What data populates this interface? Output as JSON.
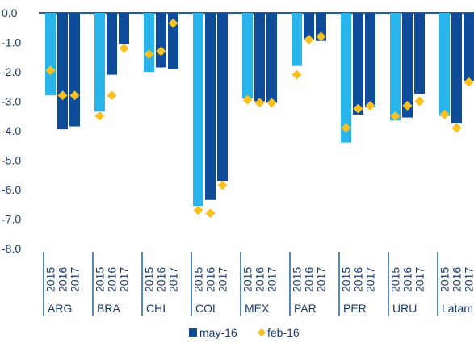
{
  "chart_data": {
    "type": "bar",
    "ylim": [
      -8,
      0
    ],
    "y_ticks": [
      "0.0",
      "-1.0",
      "-2.0",
      "-3.0",
      "-4.0",
      "-5.0",
      "-6.0",
      "-7.0",
      "-8.0"
    ],
    "years": [
      "2015",
      "2016",
      "2017"
    ],
    "groups": [
      "ARG",
      "BRA",
      "CHI",
      "COL",
      "MEX",
      "PAR",
      "PER",
      "URU",
      "Latam"
    ],
    "series": [
      {
        "name": "may-16",
        "mark": "bar",
        "values": [
          [
            -2.8,
            -3.95,
            -3.85
          ],
          [
            -3.35,
            -2.1,
            -1.05
          ],
          [
            -2.0,
            -1.85,
            -1.9
          ],
          [
            -6.55,
            -6.35,
            -5.7
          ],
          [
            -2.9,
            -3.0,
            -3.05
          ],
          [
            -1.8,
            -0.9,
            -0.95
          ],
          [
            -4.4,
            -3.45,
            -3.2
          ],
          [
            -3.65,
            -3.55,
            -2.75
          ],
          [
            -3.5,
            -3.75,
            -2.3
          ]
        ]
      },
      {
        "name": "feb-16",
        "mark": "diamond",
        "values": [
          [
            -1.95,
            -2.8,
            -2.8
          ],
          [
            -3.5,
            -2.8,
            -1.2
          ],
          [
            -1.4,
            -1.3,
            -0.35
          ],
          [
            -6.7,
            -6.8,
            -5.85
          ],
          [
            -2.95,
            -3.05,
            -3.05
          ],
          [
            -2.1,
            -0.9,
            -0.8
          ],
          [
            -3.9,
            -3.25,
            -3.15
          ],
          [
            -3.5,
            -3.15,
            -3.0
          ],
          [
            -3.45,
            -3.9,
            -2.35
          ]
        ]
      }
    ],
    "colors": {
      "2015": "#29B5EC",
      "2016": "#0E4C9A",
      "2017": "#0E4C9A",
      "legend_may16": "#0E4C9A",
      "feb16": "#F8C021",
      "axis": "#1F5FA8",
      "text": "#1B3A6B"
    },
    "legend_position": "bottom",
    "grid": false
  }
}
